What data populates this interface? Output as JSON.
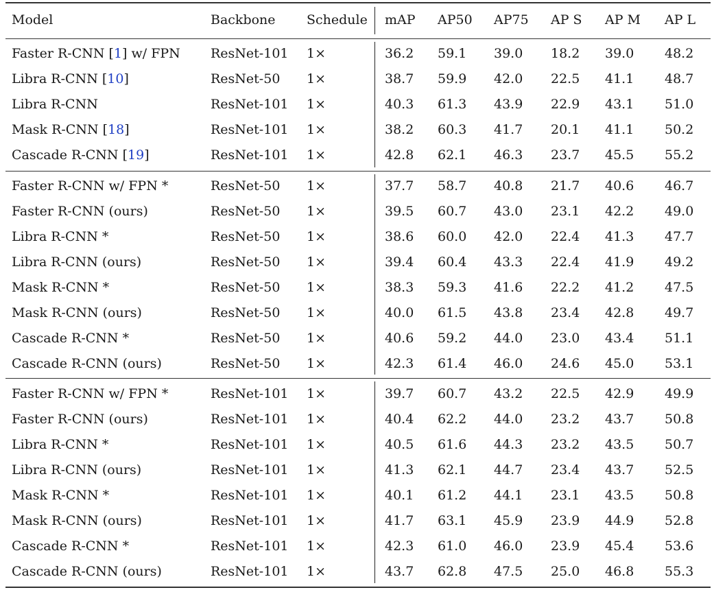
{
  "columns": [
    "Model",
    "Backbone",
    "Schedule",
    "mAP",
    "AP50",
    "AP75",
    "AP S",
    "AP M",
    "AP L"
  ],
  "groups": [
    {
      "rows": [
        {
          "model": "Faster R-CNN",
          "ref": "1",
          "suffix": "w/ FPN",
          "backbone": "ResNet-101",
          "schedule": "1×",
          "values": [
            "36.2",
            "59.1",
            "39.0",
            "18.2",
            "39.0",
            "48.2"
          ]
        },
        {
          "model": "Libra R-CNN",
          "ref": "10",
          "suffix": "",
          "backbone": "ResNet-50",
          "schedule": "1×",
          "values": [
            "38.7",
            "59.9",
            "42.0",
            "22.5",
            "41.1",
            "48.7"
          ]
        },
        {
          "model": "Libra R-CNN",
          "ref": "",
          "suffix": "",
          "backbone": "ResNet-101",
          "schedule": "1×",
          "values": [
            "40.3",
            "61.3",
            "43.9",
            "22.9",
            "43.1",
            "51.0"
          ]
        },
        {
          "model": "Mask R-CNN",
          "ref": "18",
          "suffix": "",
          "backbone": "ResNet-101",
          "schedule": "1×",
          "values": [
            "38.2",
            "60.3",
            "41.7",
            "20.1",
            "41.1",
            "50.2"
          ]
        },
        {
          "model": "Cascade R-CNN",
          "ref": "19",
          "suffix": "",
          "backbone": "ResNet-101",
          "schedule": "1×",
          "values": [
            "42.8",
            "62.1",
            "46.3",
            "23.7",
            "45.5",
            "55.2"
          ]
        }
      ]
    },
    {
      "rows": [
        {
          "model": "Faster R-CNN w/ FPN *",
          "ref": "",
          "suffix": "",
          "backbone": "ResNet-50",
          "schedule": "1×",
          "values": [
            "37.7",
            "58.7",
            "40.8",
            "21.7",
            "40.6",
            "46.7"
          ]
        },
        {
          "model": "Faster R-CNN (ours)",
          "ref": "",
          "suffix": "",
          "backbone": "ResNet-50",
          "schedule": "1×",
          "values": [
            "39.5",
            "60.7",
            "43.0",
            "23.1",
            "42.2",
            "49.0"
          ]
        },
        {
          "model": "Libra R-CNN *",
          "ref": "",
          "suffix": "",
          "backbone": "ResNet-50",
          "schedule": "1×",
          "values": [
            "38.6",
            "60.0",
            "42.0",
            "22.4",
            "41.3",
            "47.7"
          ]
        },
        {
          "model": "Libra R-CNN (ours)",
          "ref": "",
          "suffix": "",
          "backbone": "ResNet-50",
          "schedule": "1×",
          "values": [
            "39.4",
            "60.4",
            "43.3",
            "22.4",
            "41.9",
            "49.2"
          ]
        },
        {
          "model": "Mask R-CNN *",
          "ref": "",
          "suffix": "",
          "backbone": "ResNet-50",
          "schedule": "1×",
          "values": [
            "38.3",
            "59.3",
            "41.6",
            "22.2",
            "41.2",
            "47.5"
          ]
        },
        {
          "model": "Mask R-CNN (ours)",
          "ref": "",
          "suffix": "",
          "backbone": "ResNet-50",
          "schedule": "1×",
          "values": [
            "40.0",
            "61.5",
            "43.8",
            "23.4",
            "42.8",
            "49.7"
          ]
        },
        {
          "model": "Cascade R-CNN *",
          "ref": "",
          "suffix": "",
          "backbone": "ResNet-50",
          "schedule": "1×",
          "values": [
            "40.6",
            "59.2",
            "44.0",
            "23.0",
            "43.4",
            "51.1"
          ]
        },
        {
          "model": "Cascade R-CNN (ours)",
          "ref": "",
          "suffix": "",
          "backbone": "ResNet-50",
          "schedule": "1×",
          "values": [
            "42.3",
            "61.4",
            "46.0",
            "24.6",
            "45.0",
            "53.1"
          ]
        }
      ]
    },
    {
      "rows": [
        {
          "model": "Faster R-CNN w/ FPN *",
          "ref": "",
          "suffix": "",
          "backbone": "ResNet-101",
          "schedule": "1×",
          "values": [
            "39.7",
            "60.7",
            "43.2",
            "22.5",
            "42.9",
            "49.9"
          ]
        },
        {
          "model": "Faster R-CNN (ours)",
          "ref": "",
          "suffix": "",
          "backbone": "ResNet-101",
          "schedule": "1×",
          "values": [
            "40.4",
            "62.2",
            "44.0",
            "23.2",
            "43.7",
            "50.8"
          ]
        },
        {
          "model": "Libra R-CNN *",
          "ref": "",
          "suffix": "",
          "backbone": "ResNet-101",
          "schedule": "1×",
          "values": [
            "40.5",
            "61.6",
            "44.3",
            "23.2",
            "43.5",
            "50.7"
          ]
        },
        {
          "model": "Libra R-CNN (ours)",
          "ref": "",
          "suffix": "",
          "backbone": "ResNet-101",
          "schedule": "1×",
          "values": [
            "41.3",
            "62.1",
            "44.7",
            "23.4",
            "43.7",
            "52.5"
          ]
        },
        {
          "model": "Mask R-CNN *",
          "ref": "",
          "suffix": "",
          "backbone": "ResNet-101",
          "schedule": "1×",
          "values": [
            "40.1",
            "61.2",
            "44.1",
            "23.1",
            "43.5",
            "50.8"
          ]
        },
        {
          "model": "Mask R-CNN (ours)",
          "ref": "",
          "suffix": "",
          "backbone": "ResNet-101",
          "schedule": "1×",
          "values": [
            "41.7",
            "63.1",
            "45.9",
            "23.9",
            "44.9",
            "52.8"
          ]
        },
        {
          "model": "Cascade R-CNN *",
          "ref": "",
          "suffix": "",
          "backbone": "ResNet-101",
          "schedule": "1×",
          "values": [
            "42.3",
            "61.0",
            "46.0",
            "23.9",
            "45.4",
            "53.6"
          ]
        },
        {
          "model": "Cascade R-CNN (ours)",
          "ref": "",
          "suffix": "",
          "backbone": "ResNet-101",
          "schedule": "1×",
          "values": [
            "43.7",
            "62.8",
            "47.5",
            "25.0",
            "46.8",
            "55.3"
          ]
        }
      ]
    }
  ],
  "colors": {
    "text": "#1a1a1a",
    "citation": "#1f3fc4",
    "rule": "#333333"
  }
}
